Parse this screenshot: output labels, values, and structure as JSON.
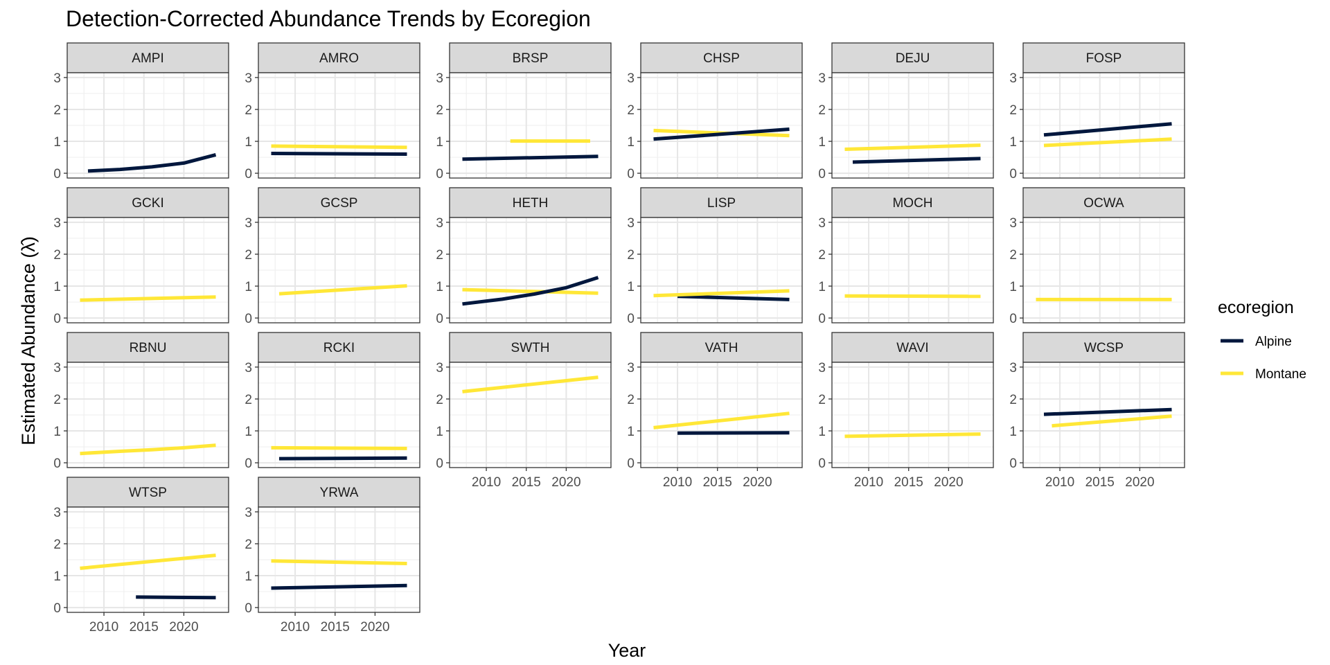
{
  "chart_data": {
    "type": "line",
    "title": "Detection-Corrected Abundance Trends by Ecoregion",
    "xlabel": "Year",
    "ylabel": "Estimated Abundance (λ̂)",
    "xlim": [
      2005.4,
      2025.6
    ],
    "ylim": [
      -0.15,
      3.15
    ],
    "x_ticks": [
      2010,
      2015,
      2020
    ],
    "y_ticks": [
      0,
      1,
      2,
      3
    ],
    "grid": true,
    "legend": {
      "title": "ecoregion",
      "placement": "right",
      "entries": [
        {
          "name": "Alpine",
          "color": "#00173d"
        },
        {
          "name": "Montane",
          "color": "#ffe737"
        }
      ]
    },
    "panels": [
      {
        "label": "AMPI",
        "series": [
          {
            "name": "Alpine",
            "x": [
              2008,
              2012,
              2016,
              2020,
              2024
            ],
            "y": [
              0.07,
              0.12,
              0.2,
              0.32,
              0.58
            ]
          }
        ]
      },
      {
        "label": "AMRO",
        "series": [
          {
            "name": "Montane",
            "x": [
              2007,
              2024
            ],
            "y": [
              0.85,
              0.81
            ]
          },
          {
            "name": "Alpine",
            "x": [
              2007,
              2024
            ],
            "y": [
              0.62,
              0.6
            ]
          }
        ]
      },
      {
        "label": "BRSP",
        "series": [
          {
            "name": "Alpine",
            "x": [
              2007,
              2024
            ],
            "y": [
              0.44,
              0.53
            ]
          },
          {
            "name": "Montane",
            "x": [
              2013,
              2023
            ],
            "y": [
              1.01,
              1.01
            ]
          }
        ]
      },
      {
        "label": "CHSP",
        "series": [
          {
            "name": "Montane",
            "x": [
              2007,
              2024
            ],
            "y": [
              1.34,
              1.18
            ]
          },
          {
            "name": "Alpine",
            "x": [
              2007,
              2024
            ],
            "y": [
              1.07,
              1.38
            ]
          }
        ]
      },
      {
        "label": "DEJU",
        "series": [
          {
            "name": "Montane",
            "x": [
              2007,
              2024
            ],
            "y": [
              0.75,
              0.88
            ]
          },
          {
            "name": "Alpine",
            "x": [
              2008,
              2024
            ],
            "y": [
              0.35,
              0.46
            ]
          }
        ]
      },
      {
        "label": "FOSP",
        "series": [
          {
            "name": "Alpine",
            "x": [
              2008,
              2024
            ],
            "y": [
              1.2,
              1.55
            ]
          },
          {
            "name": "Montane",
            "x": [
              2008,
              2024
            ],
            "y": [
              0.87,
              1.07
            ]
          }
        ]
      },
      {
        "label": "GCKI",
        "series": [
          {
            "name": "Montane",
            "x": [
              2007,
              2024
            ],
            "y": [
              0.56,
              0.66
            ]
          }
        ]
      },
      {
        "label": "GCSP",
        "series": [
          {
            "name": "Montane",
            "x": [
              2008,
              2024
            ],
            "y": [
              0.76,
              1.01
            ]
          }
        ]
      },
      {
        "label": "HETH",
        "series": [
          {
            "name": "Montane",
            "x": [
              2007,
              2024
            ],
            "y": [
              0.89,
              0.78
            ]
          },
          {
            "name": "Alpine",
            "x": [
              2007,
              2012,
              2016,
              2020,
              2024
            ],
            "y": [
              0.44,
              0.59,
              0.75,
              0.95,
              1.27
            ]
          }
        ]
      },
      {
        "label": "LISP",
        "series": [
          {
            "name": "Alpine",
            "x": [
              2010,
              2024
            ],
            "y": [
              0.68,
              0.58
            ]
          },
          {
            "name": "Montane",
            "x": [
              2007,
              2024
            ],
            "y": [
              0.7,
              0.85
            ]
          }
        ]
      },
      {
        "label": "MOCH",
        "series": [
          {
            "name": "Montane",
            "x": [
              2007,
              2024
            ],
            "y": [
              0.69,
              0.68
            ]
          }
        ]
      },
      {
        "label": "OCWA",
        "series": [
          {
            "name": "Montane",
            "x": [
              2007,
              2024
            ],
            "y": [
              0.58,
              0.58
            ]
          }
        ]
      },
      {
        "label": "RBNU",
        "series": [
          {
            "name": "Montane",
            "x": [
              2007,
              2012,
              2016,
              2020,
              2024
            ],
            "y": [
              0.29,
              0.36,
              0.41,
              0.47,
              0.55
            ]
          }
        ]
      },
      {
        "label": "RCKI",
        "series": [
          {
            "name": "Montane",
            "x": [
              2007,
              2024
            ],
            "y": [
              0.47,
              0.45
            ]
          },
          {
            "name": "Alpine",
            "x": [
              2008,
              2024
            ],
            "y": [
              0.13,
              0.15
            ]
          }
        ]
      },
      {
        "label": "SWTH",
        "series": [
          {
            "name": "Montane",
            "x": [
              2007,
              2024
            ],
            "y": [
              2.23,
              2.68
            ]
          }
        ]
      },
      {
        "label": "VATH",
        "series": [
          {
            "name": "Montane",
            "x": [
              2007,
              2024
            ],
            "y": [
              1.1,
              1.55
            ]
          },
          {
            "name": "Alpine",
            "x": [
              2010,
              2024
            ],
            "y": [
              0.93,
              0.94
            ]
          }
        ]
      },
      {
        "label": "WAVI",
        "series": [
          {
            "name": "Montane",
            "x": [
              2007,
              2024
            ],
            "y": [
              0.83,
              0.9
            ]
          }
        ]
      },
      {
        "label": "WCSP",
        "series": [
          {
            "name": "Alpine",
            "x": [
              2008,
              2024
            ],
            "y": [
              1.52,
              1.67
            ]
          },
          {
            "name": "Montane",
            "x": [
              2009,
              2024
            ],
            "y": [
              1.16,
              1.46
            ]
          }
        ]
      },
      {
        "label": "WTSP",
        "series": [
          {
            "name": "Montane",
            "x": [
              2007,
              2024
            ],
            "y": [
              1.23,
              1.64
            ]
          },
          {
            "name": "Alpine",
            "x": [
              2014,
              2024
            ],
            "y": [
              0.33,
              0.31
            ]
          }
        ]
      },
      {
        "label": "YRWA",
        "series": [
          {
            "name": "Montane",
            "x": [
              2007,
              2024
            ],
            "y": [
              1.46,
              1.38
            ]
          },
          {
            "name": "Alpine",
            "x": [
              2007,
              2024
            ],
            "y": [
              0.61,
              0.69
            ]
          }
        ]
      }
    ]
  }
}
